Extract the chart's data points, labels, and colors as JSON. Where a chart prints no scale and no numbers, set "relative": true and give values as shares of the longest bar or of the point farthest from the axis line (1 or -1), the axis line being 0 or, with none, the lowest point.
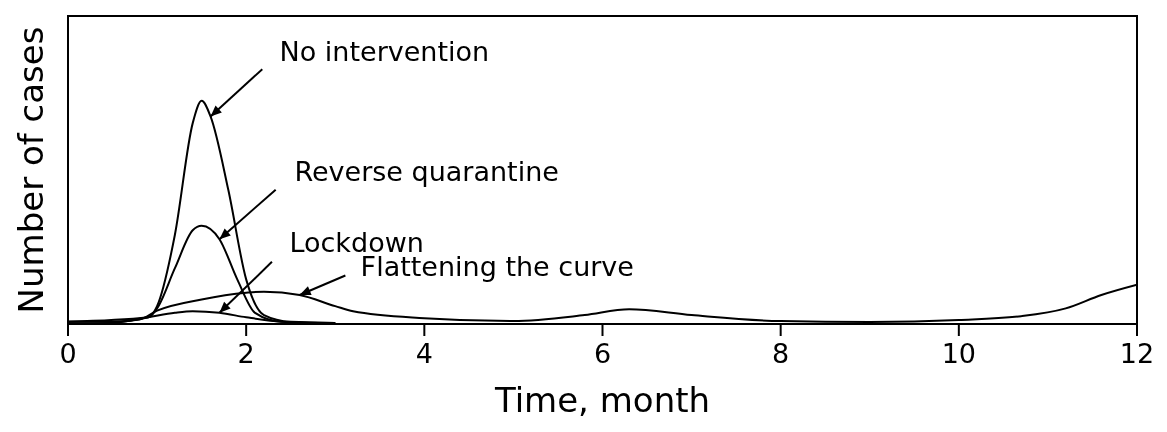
{
  "chart_data": {
    "type": "line",
    "xlabel": "Time, month",
    "ylabel": "Number of cases",
    "relative": true,
    "xlim": [
      0,
      12
    ],
    "xticks": [
      0,
      2,
      4,
      6,
      8,
      10,
      12
    ],
    "grid": false,
    "marker": "none",
    "line_style": "solid",
    "series": [
      {
        "color": "#000000",
        "x": [
          0,
          0.5,
          0.9,
          1.0,
          1.2,
          1.4,
          1.5,
          1.6,
          1.8,
          2.0,
          2.2,
          2.5,
          3
        ],
        "values": [
          0.01,
          0.01,
          0.03,
          0.08,
          0.4,
          0.9,
          1,
          0.93,
          0.6,
          0.2,
          0.04,
          0.01,
          0.005
        ]
      },
      {
        "color": "#000000",
        "x": [
          0,
          0.9,
          1.0,
          1.2,
          1.4,
          1.5,
          1.7,
          1.9,
          2.1,
          2.4,
          3
        ],
        "values": [
          0.01,
          0.03,
          0.07,
          0.25,
          0.42,
          0.44,
          0.38,
          0.2,
          0.05,
          0.01,
          0.005
        ]
      },
      {
        "color": "#000000",
        "x": [
          0,
          0.5,
          0.9,
          1.2,
          1.4,
          1.7,
          2.0,
          2.4,
          3
        ],
        "values": [
          0,
          0.005,
          0.03,
          0.05,
          0.057,
          0.05,
          0.03,
          0.01,
          0.003
        ]
      },
      {
        "color": "#000000",
        "x": [
          0,
          0.5,
          0.8,
          1.0,
          1.5,
          2.0,
          2.2,
          2.6,
          3.0,
          3.2,
          4,
          5,
          5.8,
          6.3,
          7,
          8,
          9,
          10,
          10.7,
          11.2,
          11.6,
          12
        ],
        "values": [
          0.01,
          0.01,
          0.02,
          0.06,
          0.11,
          0.14,
          0.145,
          0.13,
          0.08,
          0.057,
          0.026,
          0.013,
          0.04,
          0.066,
          0.04,
          0.013,
          0.009,
          0.018,
          0.035,
          0.07,
          0.13,
          0.176
        ]
      }
    ],
    "annotations": [
      {
        "text": "No intervention",
        "x": 1.6,
        "y": 0.93
      },
      {
        "text": "Reverse quarantine",
        "x": 1.7,
        "y": 0.38
      },
      {
        "text": "Lockdown",
        "x": 1.7,
        "y": 0.05
      },
      {
        "text": "Flattening the curve",
        "x": 2.6,
        "y": 0.13
      }
    ]
  }
}
